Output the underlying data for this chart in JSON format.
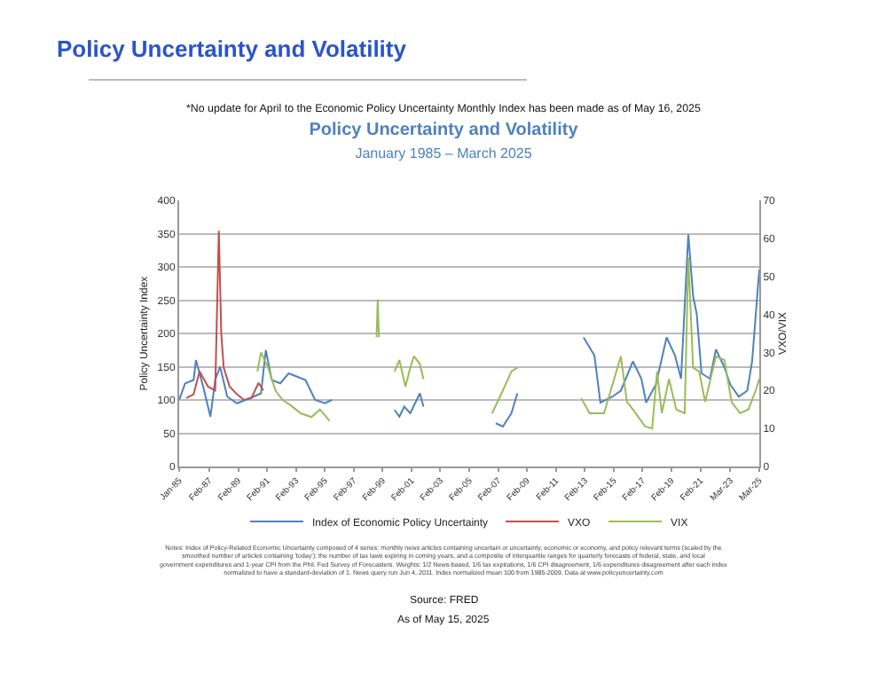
{
  "chart_data": {
    "type": "line",
    "title": "Policy Uncertainty and Volatility",
    "subtitle": "January 1985 – March 2025",
    "ylabel": "Policy Uncertainty Index",
    "y2label": "VXO/VIX",
    "ylim": [
      0,
      400
    ],
    "yticks": [
      0,
      50,
      100,
      150,
      200,
      250,
      300,
      350,
      400
    ],
    "y2lim": [
      0,
      70
    ],
    "y2ticks": [
      0,
      10,
      20,
      30,
      40,
      50,
      60,
      70
    ],
    "xlim": [
      "1985-01",
      "2025-03"
    ],
    "xticks": [
      {
        "value": "1985-01",
        "label": "Jan-85"
      },
      {
        "value": "1987-02",
        "label": "Feb-87"
      },
      {
        "value": "1989-02",
        "label": "Feb-89"
      },
      {
        "value": "1991-02",
        "label": "Feb-91"
      },
      {
        "value": "1993-02",
        "label": "Feb-93"
      },
      {
        "value": "1995-02",
        "label": "Feb-95"
      },
      {
        "value": "1997-02",
        "label": "Feb-97"
      },
      {
        "value": "1999-02",
        "label": "Feb-99"
      },
      {
        "value": "2001-02",
        "label": "Feb-01"
      },
      {
        "value": "2003-02",
        "label": "Feb-03"
      },
      {
        "value": "2005-02",
        "label": "Feb-05"
      },
      {
        "value": "2007-02",
        "label": "Feb-07"
      },
      {
        "value": "2009-02",
        "label": "Feb-09"
      },
      {
        "value": "2011-02",
        "label": "Feb-11"
      },
      {
        "value": "2013-02",
        "label": "Feb-13"
      },
      {
        "value": "2015-02",
        "label": "Feb-15"
      },
      {
        "value": "2017-02",
        "label": "Feb-17"
      },
      {
        "value": "2019-02",
        "label": "Feb-19"
      },
      {
        "value": "2021-02",
        "label": "Feb-21"
      },
      {
        "value": "2023-03",
        "label": "Mar-23"
      },
      {
        "value": "2025-03",
        "label": "Mar-25"
      }
    ],
    "grid": "y",
    "legend": "bottom",
    "marker": "none",
    "line_style": "solid",
    "series": [
      {
        "name": "Index of Economic Policy Uncertainty",
        "color": "#4f81bd",
        "x": [
          "1985-01",
          "1985-06",
          "1986-01",
          "1986-03",
          "1986-09",
          "1987-03",
          "1987-07",
          "1987-11",
          "1988-05",
          "1989-01",
          "1989-08",
          "1990-03",
          "1990-09",
          "1991-01",
          "1991-06",
          "1992-01",
          "1992-08",
          "1993-03",
          "1993-10",
          "1994-06",
          "1995-02",
          "1995-08",
          "1996-01",
          "1999-12",
          "2000-04",
          "2000-08",
          "2001-01",
          "2001-05",
          "2001-09",
          "2001-12",
          "2002-03",
          "2006-05",
          "2006-12",
          "2007-06",
          "2008-01",
          "2008-06",
          "2008-09",
          "2012-09",
          "2013-01",
          "2013-10",
          "2014-03",
          "2015-01",
          "2015-08",
          "2016-06",
          "2017-01",
          "2017-05",
          "2018-01",
          "2018-10",
          "2019-05",
          "2019-10",
          "2020-04",
          "2020-08",
          "2020-11",
          "2021-03",
          "2021-10",
          "2022-03",
          "2022-10",
          "2023-03",
          "2023-10",
          "2024-05",
          "2024-09",
          "2025-03"
        ],
        "values": [
          100,
          125,
          130,
          160,
          120,
          75,
          130,
          150,
          105,
          95,
          100,
          105,
          110,
          175,
          130,
          125,
          140,
          135,
          130,
          100,
          95,
          100,
          null,
          85,
          75,
          90,
          80,
          95,
          110,
          90,
          null,
          null,
          65,
          60,
          80,
          110,
          null,
          null,
          194,
          167,
          96,
          105,
          114,
          158,
          132,
          96,
          123,
          194,
          167,
          132,
          349,
          256,
          229,
          140,
          132,
          176,
          149,
          123,
          105,
          114,
          158,
          296
        ]
      },
      {
        "name": "VXO",
        "color": "#c0504d",
        "axis": "y2",
        "x": [
          "1985-07",
          "1986-01",
          "1986-06",
          "1987-01",
          "1987-07",
          "1987-10",
          "1987-12",
          "1988-02",
          "1988-07",
          "1989-01",
          "1989-07",
          "1990-01",
          "1990-07",
          "1990-11"
        ],
        "values": [
          18,
          19,
          25,
          21,
          20,
          62,
          35,
          26,
          21,
          19,
          17.5,
          18,
          22,
          20
        ]
      },
      {
        "name": "VIX",
        "color": "#9bbb59",
        "axis": "y2",
        "x": [
          "1990-06",
          "1990-09",
          "1991-03",
          "1991-09",
          "1992-03",
          "1992-10",
          "1993-06",
          "1994-03",
          "1994-10",
          "1995-06",
          "1995-09",
          "1998-09",
          "1998-10",
          "1998-11",
          "1999-03",
          "1999-12",
          "2000-04",
          "2000-09",
          "2001-01",
          "2001-04",
          "2001-09",
          "2001-12",
          "2002-03",
          "2006-05",
          "2006-09",
          "2007-06",
          "2008-01",
          "2008-06",
          "2008-09",
          "2012-09",
          "2012-11",
          "2013-06",
          "2014-06",
          "2015-08",
          "2016-01",
          "2016-06",
          "2017-04",
          "2017-10",
          "2018-02",
          "2018-06",
          "2018-12",
          "2019-06",
          "2020-01",
          "2020-04",
          "2020-08",
          "2021-01",
          "2021-06",
          "2022-03",
          "2022-10",
          "2023-04",
          "2023-11",
          "2024-06",
          "2024-12",
          "2025-03"
        ],
        "values": [
          25,
          30,
          26,
          20,
          17.5,
          16,
          14,
          13,
          15,
          12,
          null,
          34,
          44,
          34,
          null,
          25,
          28,
          21,
          26,
          29,
          27,
          23,
          null,
          null,
          14,
          20,
          25,
          26,
          null,
          null,
          18,
          14,
          14,
          29,
          17,
          15,
          10.6,
          10,
          25,
          14,
          23,
          15,
          14,
          55,
          26,
          25,
          17,
          29,
          28,
          17,
          14,
          15,
          20,
          23
        ]
      }
    ],
    "annotations": [
      "Policy Uncertainty and Volatility",
      "*No update for April to the Economic Policy Uncertainty Monthly Index has been made as of May 16, 2025",
      "Notes: Index of Policy-Related Economic Uncertainty composed of 4 series: monthly news articles containing uncertain or uncertainty, economic or economy, and policy relevant terms (scaled by the smoothed number of articles containing 'today'); the number of tax laws expiring in coming years, and a composite of interquartile ranges for quarterly forecasts of federal, state, and local government expenditures and 1-year CPI from the Phil. Fed Survey of Forecasters. Weights: 1/2 News-based, 1/6 tax expirations, 1/6 CPI disagreement, 1/6 expenditures disagreement after each index normalized to have a standard-deviation of 1. News query run Jun 4, 2011. Index normalized mean 100 from 1985-2009. Data at www.policyuncertainty.com",
      "Source: FRED",
      "As of May 15, 2025"
    ]
  }
}
